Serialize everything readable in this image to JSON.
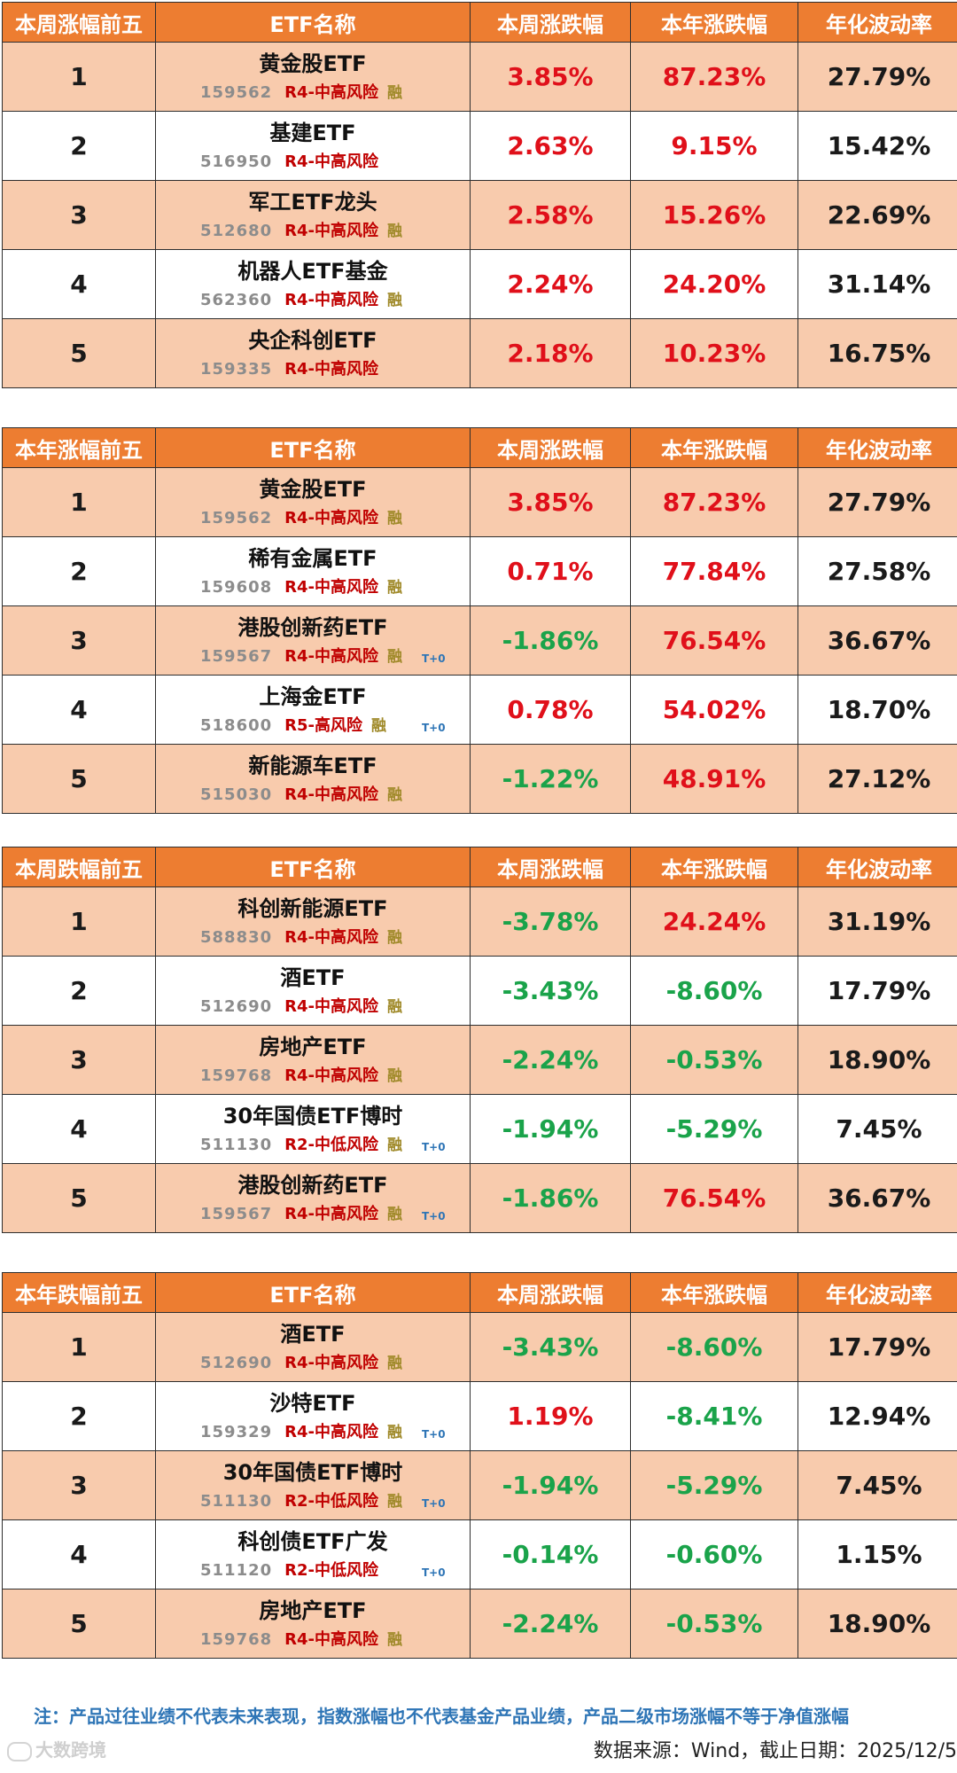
{
  "colors": {
    "header_bg": "#ed7d31",
    "row_alt_bg": "#f8cbad",
    "positive": "#e0101a",
    "negative": "#1aa34a",
    "risk": "#c00000",
    "code": "#8c8c8c",
    "t0": "#2e75b6"
  },
  "tables": [
    {
      "header": [
        "本周涨幅前五",
        "ETF名称",
        "本周涨跌幅",
        "本年涨跌幅",
        "年化波动率"
      ],
      "rows": [
        {
          "rank": "1",
          "name": "黄金股ETF",
          "code": "159562",
          "risk": "R4-中高风险",
          "rong": "融",
          "t0": "",
          "wk": "3.85%",
          "yr": "87.23%",
          "vol": "27.79%"
        },
        {
          "rank": "2",
          "name": "基建ETF",
          "code": "516950",
          "risk": "R4-中高风险",
          "rong": "",
          "t0": "",
          "wk": "2.63%",
          "yr": "9.15%",
          "vol": "15.42%"
        },
        {
          "rank": "3",
          "name": "军工ETF龙头",
          "code": "512680",
          "risk": "R4-中高风险",
          "rong": "融",
          "t0": "",
          "wk": "2.58%",
          "yr": "15.26%",
          "vol": "22.69%"
        },
        {
          "rank": "4",
          "name": "机器人ETF基金",
          "code": "562360",
          "risk": "R4-中高风险",
          "rong": "融",
          "t0": "",
          "wk": "2.24%",
          "yr": "24.20%",
          "vol": "31.14%"
        },
        {
          "rank": "5",
          "name": "央企科创ETF",
          "code": "159335",
          "risk": "R4-中高风险",
          "rong": "",
          "t0": "",
          "wk": "2.18%",
          "yr": "10.23%",
          "vol": "16.75%"
        }
      ]
    },
    {
      "header": [
        "本年涨幅前五",
        "ETF名称",
        "本周涨跌幅",
        "本年涨跌幅",
        "年化波动率"
      ],
      "rows": [
        {
          "rank": "1",
          "name": "黄金股ETF",
          "code": "159562",
          "risk": "R4-中高风险",
          "rong": "融",
          "t0": "",
          "wk": "3.85%",
          "yr": "87.23%",
          "vol": "27.79%"
        },
        {
          "rank": "2",
          "name": "稀有金属ETF",
          "code": "159608",
          "risk": "R4-中高风险",
          "rong": "融",
          "t0": "",
          "wk": "0.71%",
          "yr": "77.84%",
          "vol": "27.58%"
        },
        {
          "rank": "3",
          "name": "港股创新药ETF",
          "code": "159567",
          "risk": "R4-中高风险",
          "rong": "融",
          "t0": "T+0",
          "wk": "-1.86%",
          "yr": "76.54%",
          "vol": "36.67%"
        },
        {
          "rank": "4",
          "name": "上海金ETF",
          "code": "518600",
          "risk": "R5-高风险",
          "rong": "融",
          "t0": "T+0",
          "wk": "0.78%",
          "yr": "54.02%",
          "vol": "18.70%"
        },
        {
          "rank": "5",
          "name": "新能源车ETF",
          "code": "515030",
          "risk": "R4-中高风险",
          "rong": "融",
          "t0": "",
          "wk": "-1.22%",
          "yr": "48.91%",
          "vol": "27.12%"
        }
      ]
    },
    {
      "header": [
        "本周跌幅前五",
        "ETF名称",
        "本周涨跌幅",
        "本年涨跌幅",
        "年化波动率"
      ],
      "rows": [
        {
          "rank": "1",
          "name": "科创新能源ETF",
          "code": "588830",
          "risk": "R4-中高风险",
          "rong": "融",
          "t0": "",
          "wk": "-3.78%",
          "yr": "24.24%",
          "vol": "31.19%"
        },
        {
          "rank": "2",
          "name": "酒ETF",
          "code": "512690",
          "risk": "R4-中高风险",
          "rong": "融",
          "t0": "",
          "wk": "-3.43%",
          "yr": "-8.60%",
          "vol": "17.79%"
        },
        {
          "rank": "3",
          "name": "房地产ETF",
          "code": "159768",
          "risk": "R4-中高风险",
          "rong": "融",
          "t0": "",
          "wk": "-2.24%",
          "yr": "-0.53%",
          "vol": "18.90%"
        },
        {
          "rank": "4",
          "name": "30年国债ETF博时",
          "code": "511130",
          "risk": "R2-中低风险",
          "rong": "融",
          "t0": "T+0",
          "wk": "-1.94%",
          "yr": "-5.29%",
          "vol": "7.45%"
        },
        {
          "rank": "5",
          "name": "港股创新药ETF",
          "code": "159567",
          "risk": "R4-中高风险",
          "rong": "融",
          "t0": "T+0",
          "wk": "-1.86%",
          "yr": "76.54%",
          "vol": "36.67%"
        }
      ]
    },
    {
      "header": [
        "本年跌幅前五",
        "ETF名称",
        "本周涨跌幅",
        "本年涨跌幅",
        "年化波动率"
      ],
      "rows": [
        {
          "rank": "1",
          "name": "酒ETF",
          "code": "512690",
          "risk": "R4-中高风险",
          "rong": "融",
          "t0": "",
          "wk": "-3.43%",
          "yr": "-8.60%",
          "vol": "17.79%"
        },
        {
          "rank": "2",
          "name": "沙特ETF",
          "code": "159329",
          "risk": "R4-中高风险",
          "rong": "融",
          "t0": "T+0",
          "wk": "1.19%",
          "yr": "-8.41%",
          "vol": "12.94%"
        },
        {
          "rank": "3",
          "name": "30年国债ETF博时",
          "code": "511130",
          "risk": "R2-中低风险",
          "rong": "融",
          "t0": "T+0",
          "wk": "-1.94%",
          "yr": "-5.29%",
          "vol": "7.45%"
        },
        {
          "rank": "4",
          "name": "科创债ETF广发",
          "code": "511120",
          "risk": "R2-中低风险",
          "rong": "",
          "t0": "T+0",
          "wk": "-0.14%",
          "yr": "-0.60%",
          "vol": "1.15%"
        },
        {
          "rank": "5",
          "name": "房地产ETF",
          "code": "159768",
          "risk": "R4-中高风险",
          "rong": "融",
          "t0": "",
          "wk": "-2.24%",
          "yr": "-0.53%",
          "vol": "18.90%"
        }
      ]
    }
  ],
  "footer": {
    "note": "注：产品过往业绩不代表未来表现，指数涨幅也不代表基金产品业绩，产品二级市场涨幅不等于净值涨幅",
    "source": "数据来源：Wind，截止日期：2025/12/5",
    "logo_text": "大数跨境"
  }
}
